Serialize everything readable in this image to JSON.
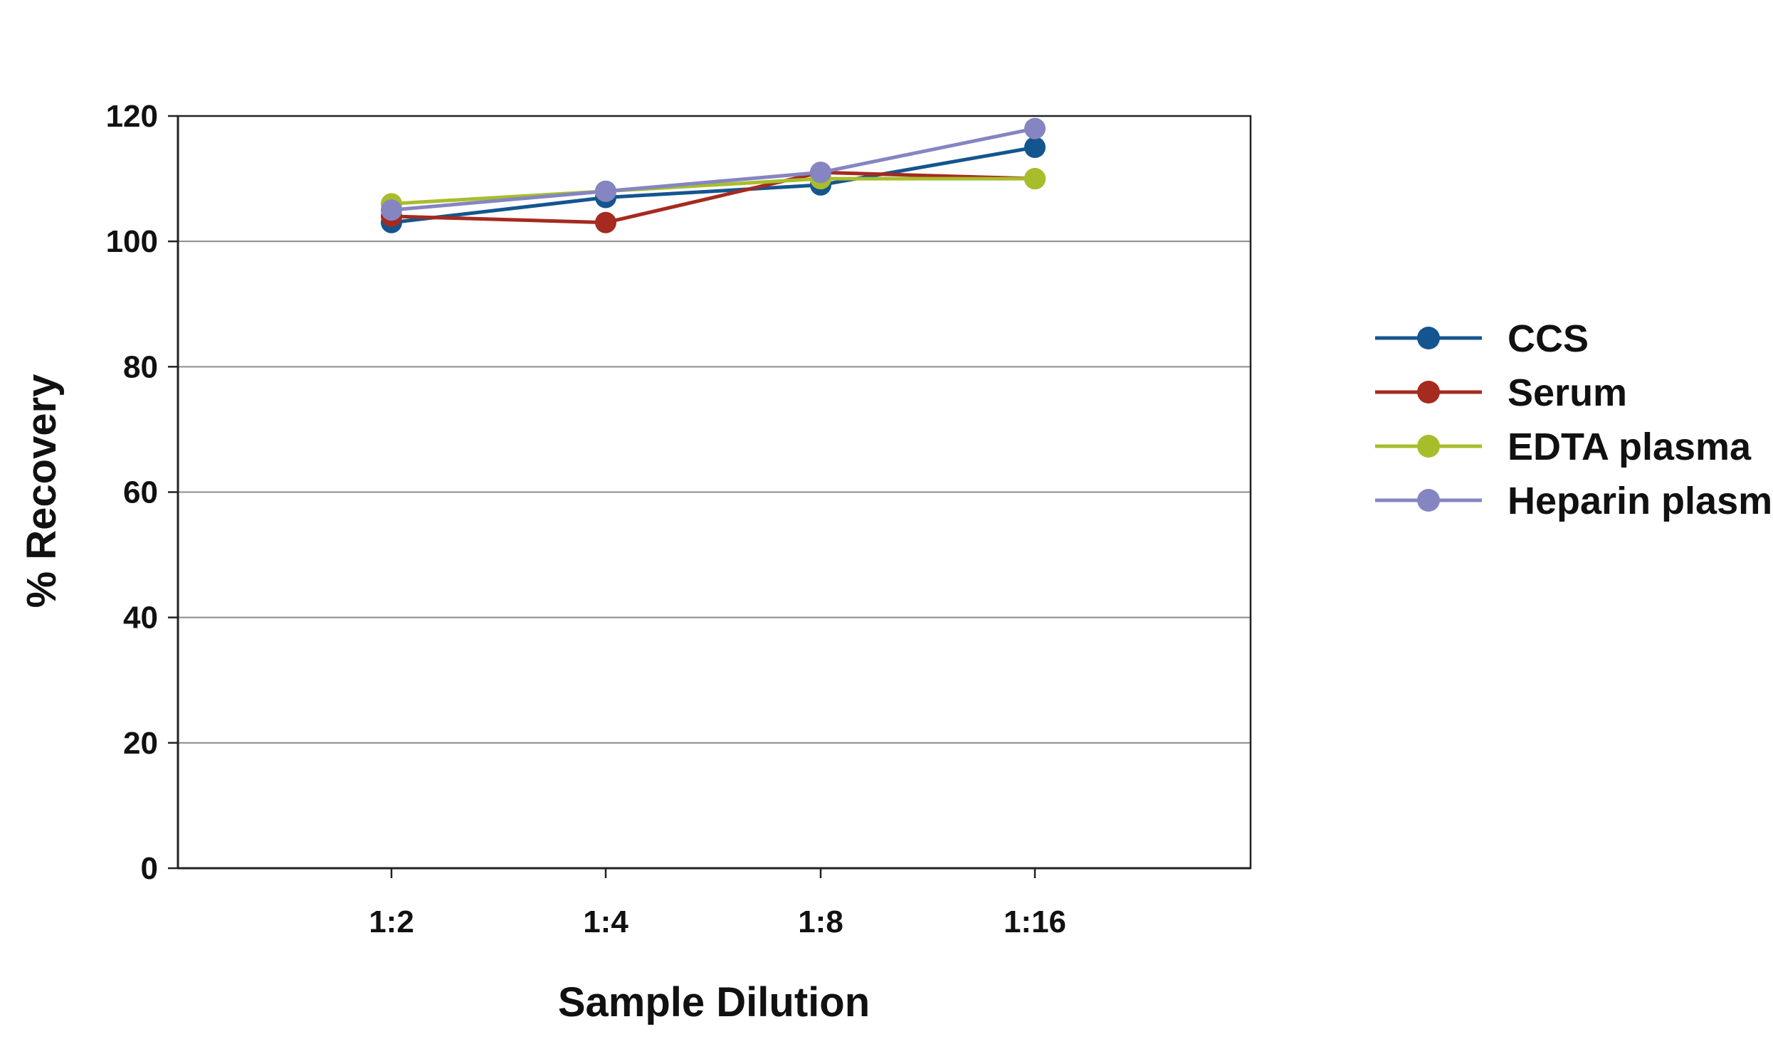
{
  "chart_data": {
    "type": "line",
    "title": "",
    "xlabel": "Sample Dilution",
    "ylabel": "% Recovery",
    "categories": [
      "1:2",
      "1:4",
      "1:8",
      "1:16"
    ],
    "ylim": [
      0,
      120
    ],
    "yticks": [
      "0",
      "20",
      "40",
      "60",
      "80",
      "100",
      "120"
    ],
    "grid": true,
    "legend_position": "right",
    "series": [
      {
        "name": "CCS",
        "color": "#14558f",
        "values": [
          103,
          107,
          109,
          115
        ]
      },
      {
        "name": "Serum",
        "color": "#a52a1f",
        "values": [
          104,
          103,
          111,
          110
        ]
      },
      {
        "name": "EDTA plasma",
        "color": "#a8bd2a",
        "values": [
          106,
          108,
          110,
          110
        ]
      },
      {
        "name": "Heparin plasma",
        "color": "#8585c2",
        "values": [
          105,
          108,
          111,
          118
        ]
      }
    ]
  }
}
